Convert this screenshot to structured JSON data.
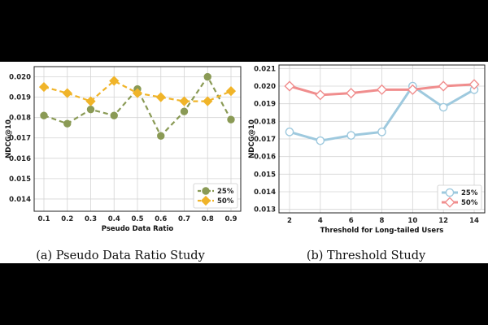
{
  "chart_data": [
    {
      "type": "line",
      "caption": "(a)  Pseudo Data Ratio Study",
      "xlabel": "Pseudo Data Ratio",
      "ylabel": "NDCG@10",
      "x": [
        "0.1",
        "0.2",
        "0.3",
        "0.4",
        "0.5",
        "0.6",
        "0.7",
        "0.8",
        "0.9"
      ],
      "ylim": [
        0.0134,
        0.0205
      ],
      "yticks": [
        "0.014",
        "0.015",
        "0.016",
        "0.017",
        "0.018",
        "0.019",
        "0.020"
      ],
      "grid": true,
      "legend_position": "bottom-right",
      "series": [
        {
          "name": "25%",
          "marker": "circle",
          "color": "#8a9a55",
          "values": [
            0.0181,
            0.0177,
            0.0184,
            0.0181,
            0.0194,
            0.0171,
            0.0183,
            0.02,
            0.0179
          ]
        },
        {
          "name": "50%",
          "marker": "diamond",
          "color": "#f0b429",
          "values": [
            0.0195,
            0.0192,
            0.0188,
            0.0198,
            0.0192,
            0.019,
            0.0188,
            0.0188,
            0.0193
          ]
        }
      ]
    },
    {
      "type": "line",
      "caption": "(b)  Threshold Study",
      "xlabel": "Threshold for Long-tailed Users",
      "ylabel": "NDCG@10",
      "x": [
        "2",
        "4",
        "6",
        "8",
        "10",
        "12",
        "14"
      ],
      "ylim": [
        0.0128,
        0.0212
      ],
      "yticks": [
        "0.013",
        "0.014",
        "0.015",
        "0.016",
        "0.017",
        "0.018",
        "0.019",
        "0.020",
        "0.021"
      ],
      "grid": true,
      "legend_position": "bottom-right",
      "series": [
        {
          "name": "25%",
          "marker": "circle-open",
          "color": "#9ec9de",
          "values": [
            0.0174,
            0.0169,
            0.0172,
            0.0174,
            0.02,
            0.0188,
            0.0198
          ]
        },
        {
          "name": "50%",
          "marker": "diamond-open",
          "color": "#f08d8d",
          "values": [
            0.02,
            0.0195,
            0.0196,
            0.0198,
            0.0198,
            0.02,
            0.0201
          ]
        }
      ]
    }
  ]
}
